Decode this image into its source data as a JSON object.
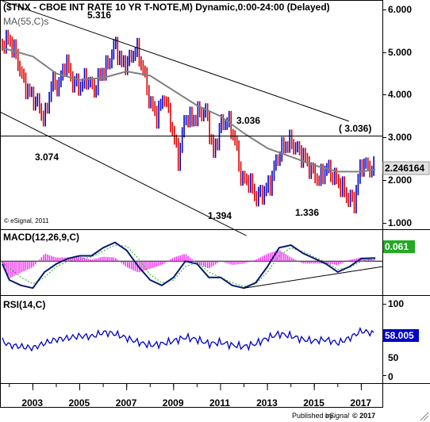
{
  "header": {
    "title": "($TNX - CBOE INT RATE 10 YR T-NOTE,M) Dynamic,0:00-24:00 (Delayed)",
    "ma_label": "MA(55,C)s",
    "copyright": "© eSignal, 2011"
  },
  "price_panel": {
    "y_ticks": [
      "6.000",
      "5.000",
      "4.000",
      "3.000",
      "2.000",
      "1.000"
    ],
    "last_value": "2.246164",
    "annotations": [
      "5.316",
      "3.074",
      "3.036",
      "( 3.036)",
      "1.394",
      "1.336"
    ]
  },
  "macd_panel": {
    "label": "MACD(12,26,9,C)",
    "last_value": "0.061"
  },
  "rsi_panel": {
    "label": "RSI(14,C)",
    "y_ticks": [
      "100",
      "50",
      "0"
    ],
    "last_value": "58.005"
  },
  "x_axis": {
    "ticks": [
      "2003",
      "2005",
      "2007",
      "2009",
      "2011",
      "2013",
      "2015",
      "2017"
    ]
  },
  "footer": {
    "published_by": "Published by",
    "brand": "eSignal",
    "date": "© 2017"
  },
  "colors": {
    "up_bar": "#0000cc",
    "down_bar": "#dd0000",
    "ma": "#808080",
    "macd_line": "#0a1a6e",
    "signal_line": "#22aa22",
    "histogram": "#ee33ee",
    "rsi": "#0000cc",
    "price_box": "#e0e0e0",
    "macd_box": "#22aa22",
    "rsi_box": "#0000cc",
    "trendline": "#000000"
  },
  "chart_data": [
    {
      "type": "line",
      "title": "($TNX - CBOE INT RATE 10 YR T-NOTE,M) Dynamic,0:00-24:00 (Delayed)",
      "x_range": [
        2001.6,
        2017.9
      ],
      "ylim": [
        0.6,
        6.2
      ],
      "series": [
        {
          "name": "$TNX",
          "x": [
            2001.7,
            2002.0,
            2002.3,
            2002.6,
            2002.9,
            2003.2,
            2003.5,
            2003.8,
            2004.1,
            2004.4,
            2004.7,
            2005.0,
            2005.3,
            2005.6,
            2005.9,
            2006.2,
            2006.5,
            2006.8,
            2007.1,
            2007.4,
            2007.7,
            2008.0,
            2008.3,
            2008.6,
            2008.9,
            2009.2,
            2009.5,
            2009.8,
            2010.1,
            2010.4,
            2010.7,
            2011.0,
            2011.3,
            2011.6,
            2011.9,
            2012.2,
            2012.5,
            2012.8,
            2013.1,
            2013.4,
            2013.7,
            2014.0,
            2014.3,
            2014.6,
            2014.9,
            2015.2,
            2015.5,
            2015.8,
            2016.1,
            2016.4,
            2016.7,
            2017.0,
            2017.3,
            2017.6
          ],
          "y": [
            5.2,
            5.3,
            4.9,
            4.3,
            4.0,
            3.8,
            3.4,
            4.3,
            4.2,
            4.8,
            4.3,
            4.2,
            4.4,
            4.1,
            4.5,
            4.7,
            5.2,
            4.7,
            4.8,
            5.1,
            4.6,
            3.8,
            3.5,
            4.0,
            3.3,
            2.5,
            3.5,
            3.4,
            3.6,
            3.6,
            2.6,
            3.3,
            3.4,
            3.0,
            2.0,
            2.0,
            1.6,
            1.7,
            1.9,
            2.5,
            2.8,
            2.9,
            2.7,
            2.5,
            2.2,
            2.0,
            2.3,
            2.1,
            1.9,
            1.6,
            1.5,
            2.4,
            2.3,
            2.25
          ]
        },
        {
          "name": "MA(55,C)s",
          "x": [
            2001.7,
            2003.0,
            2004.0,
            2005.0,
            2006.0,
            2007.0,
            2008.0,
            2009.0,
            2010.0,
            2011.0,
            2012.0,
            2013.0,
            2014.0,
            2015.0,
            2016.0,
            2017.0,
            2017.6
          ],
          "y": [
            5.1,
            4.9,
            4.5,
            4.35,
            4.4,
            4.55,
            4.45,
            4.1,
            3.75,
            3.5,
            3.1,
            2.75,
            2.55,
            2.35,
            2.2,
            2.2,
            2.25
          ]
        }
      ],
      "annotations": [
        {
          "text": "5.316",
          "x": 2006.5,
          "y": 5.316
        },
        {
          "text": "3.074",
          "x": 2003.5,
          "y": 3.074
        },
        {
          "text": "3.036",
          "x": 2013.5,
          "y": 3.036
        },
        {
          "text": "1.394",
          "x": 2012.5,
          "y": 1.394
        },
        {
          "text": "1.336",
          "x": 2016.5,
          "y": 1.336
        }
      ],
      "hlines": [
        3.036
      ],
      "trendlines": [
        {
          "from": [
            2001.7,
            6.2
          ],
          "to": [
            2019.0,
            2.9
          ]
        },
        {
          "from": [
            2001.6,
            3.6
          ],
          "to": [
            2012.1,
            0.7
          ]
        }
      ]
    },
    {
      "type": "line",
      "title": "MACD(12,26,9,C)",
      "x_range": [
        2001.6,
        2017.9
      ],
      "ylim": [
        -0.6,
        0.55
      ],
      "series": [
        {
          "name": "MACD",
          "x": [
            2001.7,
            2002.0,
            2002.5,
            2003.0,
            2003.5,
            2004.0,
            2004.5,
            2005.0,
            2005.5,
            2006.0,
            2006.5,
            2007.0,
            2007.5,
            2008.0,
            2008.5,
            2009.0,
            2009.5,
            2010.0,
            2010.5,
            2011.0,
            2011.5,
            2012.0,
            2012.5,
            2013.0,
            2013.5,
            2014.0,
            2014.5,
            2015.0,
            2015.5,
            2016.0,
            2016.5,
            2017.0,
            2017.6
          ],
          "y": [
            -0.05,
            -0.35,
            -0.45,
            -0.5,
            -0.2,
            -0.05,
            0.05,
            0.1,
            0.1,
            0.25,
            0.35,
            0.2,
            -0.1,
            -0.35,
            -0.45,
            -0.3,
            0.0,
            -0.05,
            -0.3,
            -0.3,
            -0.45,
            -0.5,
            -0.4,
            -0.1,
            0.25,
            0.3,
            0.15,
            0.05,
            -0.05,
            -0.2,
            -0.1,
            0.05,
            0.06
          ]
        },
        {
          "name": "Signal",
          "x": [
            2001.7,
            2002.5,
            2003.0,
            2003.5,
            2004.0,
            2004.5,
            2005.5,
            2006.5,
            2007.0,
            2007.5,
            2008.0,
            2008.5,
            2009.0,
            2009.5,
            2010.0,
            2010.5,
            2011.0,
            2011.5,
            2012.0,
            2012.5,
            2013.0,
            2013.5,
            2014.0,
            2014.5,
            2015.0,
            2015.5,
            2016.0,
            2016.5,
            2017.0,
            2017.6
          ],
          "y": [
            -0.02,
            -0.3,
            -0.42,
            -0.3,
            -0.1,
            0.0,
            0.08,
            0.3,
            0.28,
            0.05,
            -0.25,
            -0.4,
            -0.35,
            -0.1,
            -0.02,
            -0.2,
            -0.3,
            -0.4,
            -0.47,
            -0.42,
            -0.2,
            0.1,
            0.25,
            0.18,
            0.08,
            -0.02,
            -0.15,
            -0.12,
            0.0,
            0.04
          ]
        }
      ]
    },
    {
      "type": "line",
      "title": "RSI(14,C)",
      "x_range": [
        2001.6,
        2017.9
      ],
      "ylim": [
        0,
        100
      ],
      "series": [
        {
          "name": "RSI(14,C)",
          "x": [
            2001.7,
            2002.0,
            2002.5,
            2003.0,
            2003.5,
            2004.0,
            2004.5,
            2005.0,
            2005.5,
            2006.0,
            2006.5,
            2007.0,
            2007.5,
            2008.0,
            2008.5,
            2009.0,
            2009.5,
            2010.0,
            2010.5,
            2011.0,
            2011.5,
            2012.0,
            2012.5,
            2013.0,
            2013.5,
            2014.0,
            2014.5,
            2015.0,
            2015.5,
            2016.0,
            2016.5,
            2017.0,
            2017.6
          ],
          "y": [
            48,
            42,
            40,
            38,
            45,
            50,
            52,
            55,
            54,
            60,
            58,
            52,
            46,
            42,
            44,
            48,
            53,
            50,
            44,
            46,
            42,
            40,
            44,
            52,
            58,
            55,
            50,
            48,
            50,
            45,
            52,
            62,
            58
          ]
        }
      ]
    }
  ]
}
